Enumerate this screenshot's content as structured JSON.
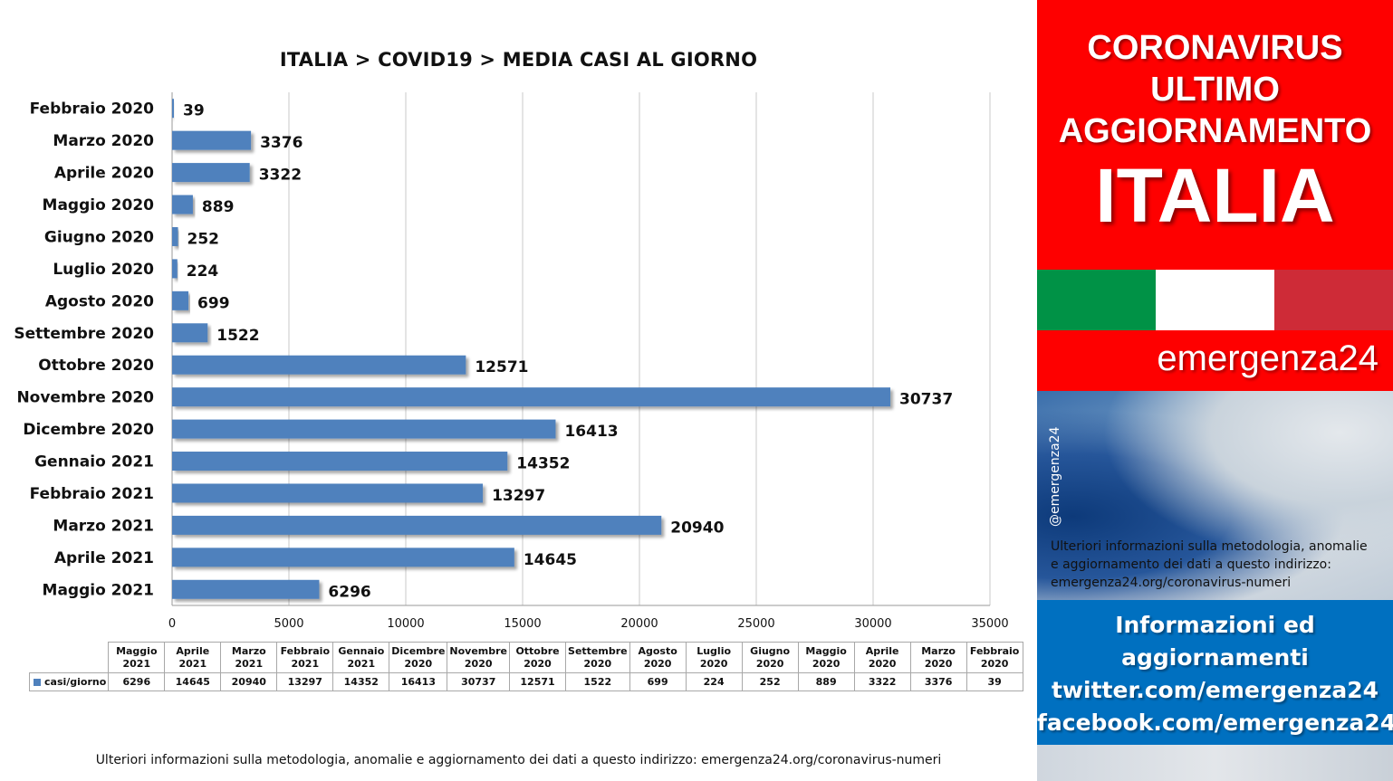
{
  "chart_data": {
    "type": "bar",
    "orientation": "horizontal",
    "title": "ITALIA >  COVID19 > MEDIA CASI AL GIORNO",
    "categories": [
      "Febbraio 2020",
      "Marzo 2020",
      "Aprile 2020",
      "Maggio 2020",
      "Giugno 2020",
      "Luglio 2020",
      "Agosto 2020",
      "Settembre 2020",
      "Ottobre 2020",
      "Novembre 2020",
      "Dicembre 2020",
      "Gennaio 2021",
      "Febbraio 2021",
      "Marzo 2021",
      "Aprile 2021",
      "Maggio 2021"
    ],
    "series": [
      {
        "name": "casi/giorno",
        "color": "#4f81bd",
        "values": [
          39,
          3376,
          3322,
          889,
          252,
          224,
          699,
          1522,
          12571,
          30737,
          16413,
          14352,
          13297,
          20940,
          14645,
          6296
        ]
      }
    ],
    "xlim": [
      0,
      35000
    ],
    "xticks": [
      "0",
      "5000",
      "10000",
      "15000",
      "20000",
      "25000",
      "30000",
      "35000"
    ],
    "grid": true,
    "data_labels": true
  },
  "table": {
    "row_label": "casi/giorno",
    "columns": [
      {
        "month": "Maggio",
        "year": "2021",
        "value": "6296"
      },
      {
        "month": "Aprile",
        "year": "2021",
        "value": "14645"
      },
      {
        "month": "Marzo",
        "year": "2021",
        "value": "20940"
      },
      {
        "month": "Febbraio",
        "year": "2021",
        "value": "13297"
      },
      {
        "month": "Gennaio",
        "year": "2021",
        "value": "14352"
      },
      {
        "month": "Dicembre",
        "year": "2020",
        "value": "16413"
      },
      {
        "month": "Novembre",
        "year": "2020",
        "value": "30737"
      },
      {
        "month": "Ottobre",
        "year": "2020",
        "value": "12571"
      },
      {
        "month": "Settembre",
        "year": "2020",
        "value": "1522"
      },
      {
        "month": "Agosto",
        "year": "2020",
        "value": "699"
      },
      {
        "month": "Luglio",
        "year": "2020",
        "value": "224"
      },
      {
        "month": "Giugno",
        "year": "2020",
        "value": "252"
      },
      {
        "month": "Maggio",
        "year": "2020",
        "value": "889"
      },
      {
        "month": "Aprile",
        "year": "2020",
        "value": "3322"
      },
      {
        "month": "Marzo",
        "year": "2020",
        "value": "3376"
      },
      {
        "month": "Febbraio",
        "year": "2020",
        "value": "39"
      }
    ]
  },
  "footnote": "Ulteriori informazioni sulla metodologia, anomalie e aggiornamento dei dati a questo indirizzo: emergenza24.org/coronavirus-numeri",
  "side": {
    "banner_lines": [
      "CORONAVIRUS",
      "ULTIMO",
      "AGGIORNAMENTO"
    ],
    "country": "ITALIA",
    "flag_colors": [
      "#009246",
      "#ffffff",
      "#ce2b37"
    ],
    "brand": "emergenza24",
    "handle": "@emergenza24",
    "note_lines": [
      "Ulteriori informazioni sulla metodologia, anomalie",
      "e aggiornamento dei dati a questo indirizzo:",
      "emergenza24.org/coronavirus-numeri"
    ],
    "info_lines": [
      "Informazioni ed",
      "aggiornamenti",
      "twitter.com/emergenza24",
      "facebook.com/emergenza24"
    ]
  }
}
